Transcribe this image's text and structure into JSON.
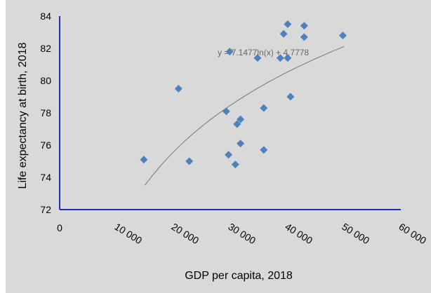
{
  "chart_data": {
    "type": "scatter",
    "xlabel": "GDP per capita, 2018",
    "ylabel": "Life expectancy at birth, 2018",
    "xlim": [
      0,
      60000
    ],
    "ylim": [
      72,
      84
    ],
    "x_ticks": [
      "0",
      "10 000",
      "20 000",
      "30 000",
      "40 000",
      "50 000",
      "60 000"
    ],
    "y_ticks": [
      "72",
      "74",
      "76",
      "78",
      "80",
      "82",
      "84"
    ],
    "grid": false,
    "legend": "none",
    "marker_color": "#4f81bd",
    "axis_color": "#1f2db0",
    "series": [
      {
        "points": [
          {
            "x": 14800,
            "y": 75.1
          },
          {
            "x": 20900,
            "y": 79.5
          },
          {
            "x": 22800,
            "y": 75.0
          },
          {
            "x": 29300,
            "y": 78.1
          },
          {
            "x": 29700,
            "y": 75.4
          },
          {
            "x": 29900,
            "y": 81.8
          },
          {
            "x": 30900,
            "y": 74.8
          },
          {
            "x": 31200,
            "y": 77.3
          },
          {
            "x": 31800,
            "y": 77.6
          },
          {
            "x": 31800,
            "y": 76.1
          },
          {
            "x": 34800,
            "y": 81.4
          },
          {
            "x": 35900,
            "y": 75.7
          },
          {
            "x": 35900,
            "y": 78.3
          },
          {
            "x": 38800,
            "y": 81.4
          },
          {
            "x": 39400,
            "y": 82.9
          },
          {
            "x": 40100,
            "y": 83.5
          },
          {
            "x": 40100,
            "y": 81.4
          },
          {
            "x": 40600,
            "y": 79.0
          },
          {
            "x": 43000,
            "y": 83.4
          },
          {
            "x": 43000,
            "y": 82.7
          },
          {
            "x": 49800,
            "y": 82.8
          }
        ]
      }
    ],
    "trendline": {
      "type": "logarithmic",
      "a": 7.1477,
      "b": 4.7778,
      "x_start": 15000,
      "x_end": 50000,
      "label": "y = 7.1477ln(x) + 4.7778",
      "color": "#777777"
    }
  }
}
